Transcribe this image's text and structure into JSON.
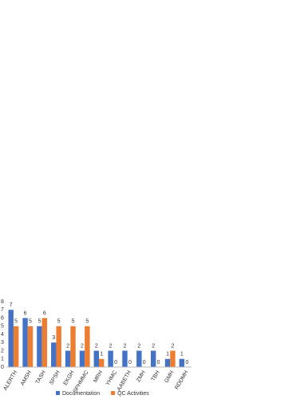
{
  "chart_data": {
    "type": "bar",
    "categories": [
      "ALERTH",
      "AMSH",
      "TASH",
      "SPSH",
      "EKGH",
      "SPHMMC",
      "MRH",
      "YHMC",
      "AABETH",
      "ZMH",
      "TBH",
      "GMH",
      "RDDMH"
    ],
    "series": [
      {
        "name": "Documentation",
        "color": "#4472c4",
        "values": [
          7,
          6,
          5,
          3,
          2,
          2,
          2,
          2,
          2,
          2,
          2,
          1,
          1
        ]
      },
      {
        "name": "QC Activities",
        "color": "#ed7d31",
        "values": [
          5,
          5,
          6,
          5,
          5,
          5,
          1,
          0,
          0,
          0,
          0,
          2,
          0
        ]
      }
    ],
    "ylim": [
      0,
      8
    ],
    "yticks": [
      0,
      1,
      2,
      3,
      4,
      5,
      6,
      7,
      8
    ],
    "grid": false,
    "legend": "bottom"
  }
}
